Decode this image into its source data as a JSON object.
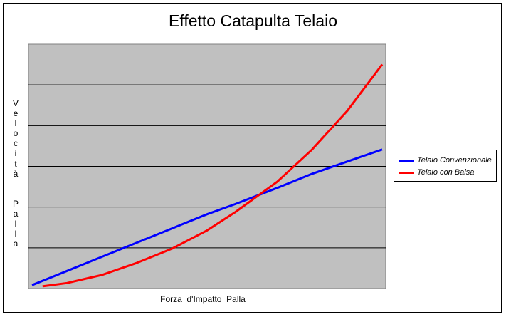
{
  "chart_data": {
    "type": "line",
    "title": "Effetto Catapulta Telaio",
    "xlabel": "Forza  d'Impatto  Palla",
    "ylabel": "Velocità  Palla",
    "xlim": [
      0,
      100
    ],
    "ylim": [
      0,
      6
    ],
    "grid": true,
    "legend_position": "right",
    "plot_background": "#c0c0c0",
    "series": [
      {
        "name": "Telaio Convenzionale",
        "color": "#0000ff",
        "x": [
          0,
          10,
          20,
          30,
          40,
          50,
          58,
          70,
          80,
          90,
          100
        ],
        "y": [
          0.05,
          0.4,
          0.75,
          1.1,
          1.45,
          1.8,
          2.05,
          2.45,
          2.8,
          3.1,
          3.4
        ]
      },
      {
        "name": "Telaio con Balsa",
        "color": "#ff0000",
        "x": [
          3,
          10,
          20,
          30,
          40,
          50,
          58,
          70,
          80,
          90,
          100
        ],
        "y": [
          0.02,
          0.1,
          0.3,
          0.6,
          0.95,
          1.4,
          1.85,
          2.6,
          3.4,
          4.35,
          5.5
        ]
      }
    ]
  }
}
